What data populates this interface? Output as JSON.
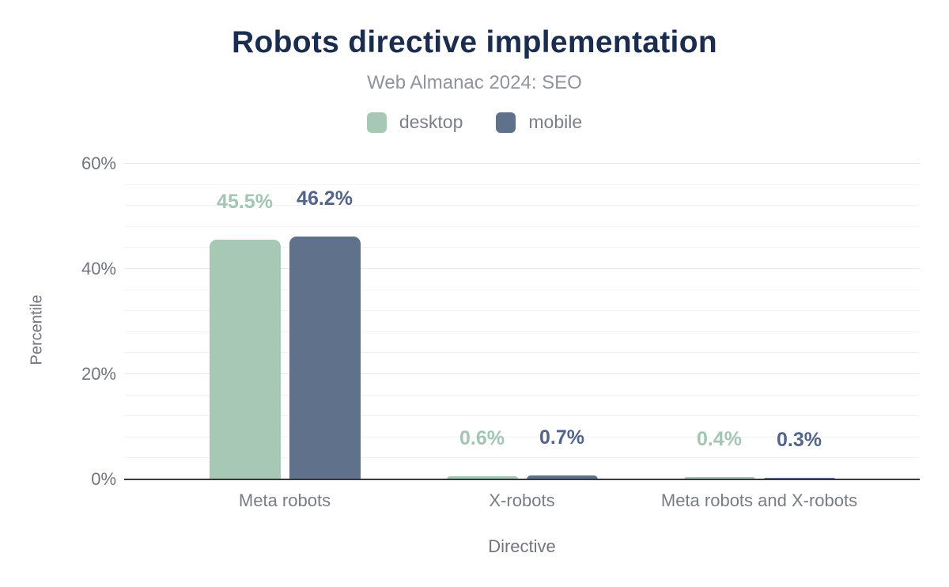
{
  "chart_data": {
    "type": "bar",
    "title": "Robots directive implementation",
    "subtitle": "Web Almanac 2024: SEO",
    "xlabel": "Directive",
    "ylabel": "Percentile",
    "categories": [
      "Meta robots",
      "X-robots",
      "Meta robots and X-robots"
    ],
    "series": [
      {
        "name": "desktop",
        "color": "#a6c8b5",
        "label_color": "#a2c6b3",
        "values": [
          45.5,
          0.6,
          0.4
        ]
      },
      {
        "name": "mobile",
        "color": "#60718c",
        "label_color": "#53648a",
        "values": [
          46.2,
          0.7,
          0.3
        ]
      }
    ],
    "value_labels": {
      "desktop": [
        "45.5%",
        "0.6%",
        "0.4%"
      ],
      "mobile": [
        "46.2%",
        "0.7%",
        "0.3%"
      ]
    },
    "ylim": [
      0,
      60
    ],
    "yticks": [
      0,
      20,
      40,
      60
    ],
    "ytick_labels": [
      "0%",
      "20%",
      "40%",
      "60%"
    ],
    "minor_grid_step": 4,
    "grid": true,
    "legend_position": "top"
  },
  "theme": {
    "title_color": "#1b2d4f",
    "subtitle_color": "#8f939b",
    "axis_text_color": "#71757e",
    "category_text_color": "#787c84",
    "legend_text_color": "#7b7f88",
    "gridline_minor_color": "#f3f3f5",
    "gridline_major_color": "#e8e8ea",
    "axis_line_color": "#38393d",
    "background_color": "#ffffff"
  }
}
